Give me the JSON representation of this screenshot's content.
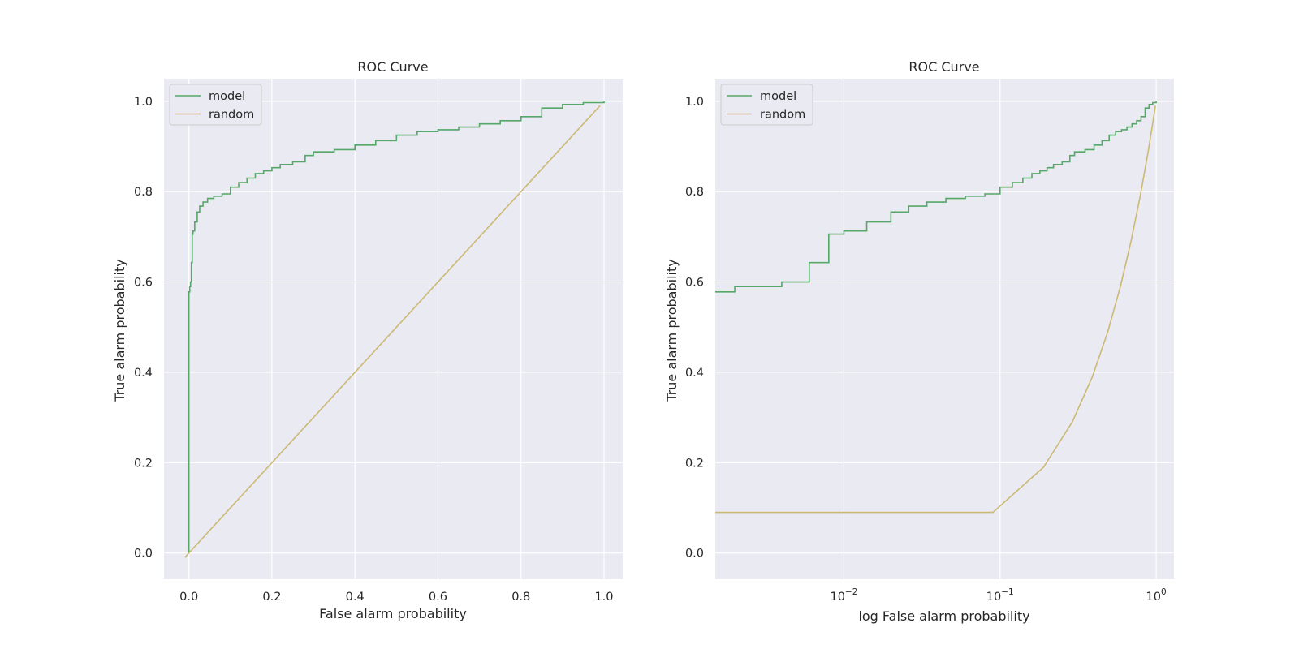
{
  "colors": {
    "model": "#55a868",
    "random": "#ccb974"
  },
  "chart_data": [
    {
      "type": "line",
      "title": "ROC Curve",
      "xlabel": "False alarm probability",
      "ylabel": "True alarm probability",
      "xscale": "linear",
      "xlim": [
        -0.06,
        1.045
      ],
      "ylim": [
        -0.058,
        1.05
      ],
      "x_ticks": [
        0.0,
        0.2,
        0.4,
        0.6,
        0.8,
        1.0
      ],
      "x_tick_labels": [
        "0.0",
        "0.2",
        "0.4",
        "0.6",
        "0.8",
        "1.0"
      ],
      "y_ticks": [
        0.0,
        0.2,
        0.4,
        0.6,
        0.8,
        1.0
      ],
      "y_tick_labels": [
        "0.0",
        "0.2",
        "0.4",
        "0.6",
        "0.8",
        "1.0"
      ],
      "grid": true,
      "legend": "top-left",
      "series": [
        {
          "name": "model",
          "color": "#55a868",
          "step": true,
          "x": [
            0.0,
            0.0,
            0.002,
            0.004,
            0.006,
            0.008,
            0.01,
            0.014,
            0.02,
            0.026,
            0.034,
            0.045,
            0.06,
            0.08,
            0.1,
            0.12,
            0.14,
            0.16,
            0.18,
            0.2,
            0.22,
            0.25,
            0.28,
            0.3,
            0.35,
            0.4,
            0.45,
            0.5,
            0.55,
            0.6,
            0.65,
            0.7,
            0.75,
            0.8,
            0.85,
            0.9,
            0.95,
            1.0
          ],
          "y": [
            0.0,
            0.578,
            0.59,
            0.6,
            0.643,
            0.706,
            0.713,
            0.733,
            0.755,
            0.768,
            0.777,
            0.785,
            0.79,
            0.795,
            0.81,
            0.82,
            0.83,
            0.84,
            0.846,
            0.853,
            0.86,
            0.866,
            0.88,
            0.888,
            0.893,
            0.903,
            0.913,
            0.925,
            0.933,
            0.937,
            0.943,
            0.95,
            0.957,
            0.966,
            0.985,
            0.993,
            0.997,
            1.0
          ]
        },
        {
          "name": "random",
          "color": "#ccb974",
          "step": false,
          "x": [
            -0.01,
            0.99
          ],
          "y": [
            -0.01,
            0.99
          ]
        }
      ]
    },
    {
      "type": "line",
      "title": "ROC Curve",
      "xlabel": "log False alarm probability",
      "ylabel": "True alarm probability",
      "xscale": "log",
      "xlim": [
        0.0015,
        1.3
      ],
      "ylim": [
        -0.058,
        1.05
      ],
      "x_ticks": [
        0.01,
        0.1,
        1.0
      ],
      "x_tick_labels": [
        {
          "base": "10",
          "exp": "−2"
        },
        {
          "base": "10",
          "exp": "−1"
        },
        {
          "base": "10",
          "exp": "0"
        }
      ],
      "y_ticks": [
        0.0,
        0.2,
        0.4,
        0.6,
        0.8,
        1.0
      ],
      "y_tick_labels": [
        "0.0",
        "0.2",
        "0.4",
        "0.6",
        "0.8",
        "1.0"
      ],
      "grid": true,
      "legend": "top-left",
      "series": [
        {
          "name": "model",
          "color": "#55a868",
          "step": true,
          "x": [
            0.0015,
            0.002,
            0.004,
            0.006,
            0.008,
            0.01,
            0.014,
            0.02,
            0.026,
            0.034,
            0.045,
            0.06,
            0.08,
            0.1,
            0.12,
            0.14,
            0.16,
            0.18,
            0.2,
            0.22,
            0.25,
            0.28,
            0.3,
            0.35,
            0.4,
            0.45,
            0.5,
            0.55,
            0.6,
            0.65,
            0.7,
            0.75,
            0.8,
            0.85,
            0.9,
            0.95,
            1.0
          ],
          "y": [
            0.578,
            0.59,
            0.6,
            0.643,
            0.706,
            0.713,
            0.733,
            0.755,
            0.768,
            0.777,
            0.785,
            0.79,
            0.795,
            0.81,
            0.82,
            0.83,
            0.84,
            0.846,
            0.853,
            0.86,
            0.866,
            0.88,
            0.888,
            0.893,
            0.903,
            0.913,
            0.925,
            0.933,
            0.937,
            0.943,
            0.95,
            0.957,
            0.966,
            0.985,
            0.993,
            0.997,
            1.0
          ]
        },
        {
          "name": "random",
          "color": "#ccb974",
          "step": false,
          "x": [
            0.0015,
            0.09,
            0.19,
            0.29,
            0.39,
            0.49,
            0.59,
            0.69,
            0.79,
            0.89,
            0.99
          ],
          "y": [
            0.09,
            0.09,
            0.19,
            0.29,
            0.39,
            0.49,
            0.59,
            0.69,
            0.79,
            0.89,
            0.99
          ]
        }
      ]
    }
  ]
}
